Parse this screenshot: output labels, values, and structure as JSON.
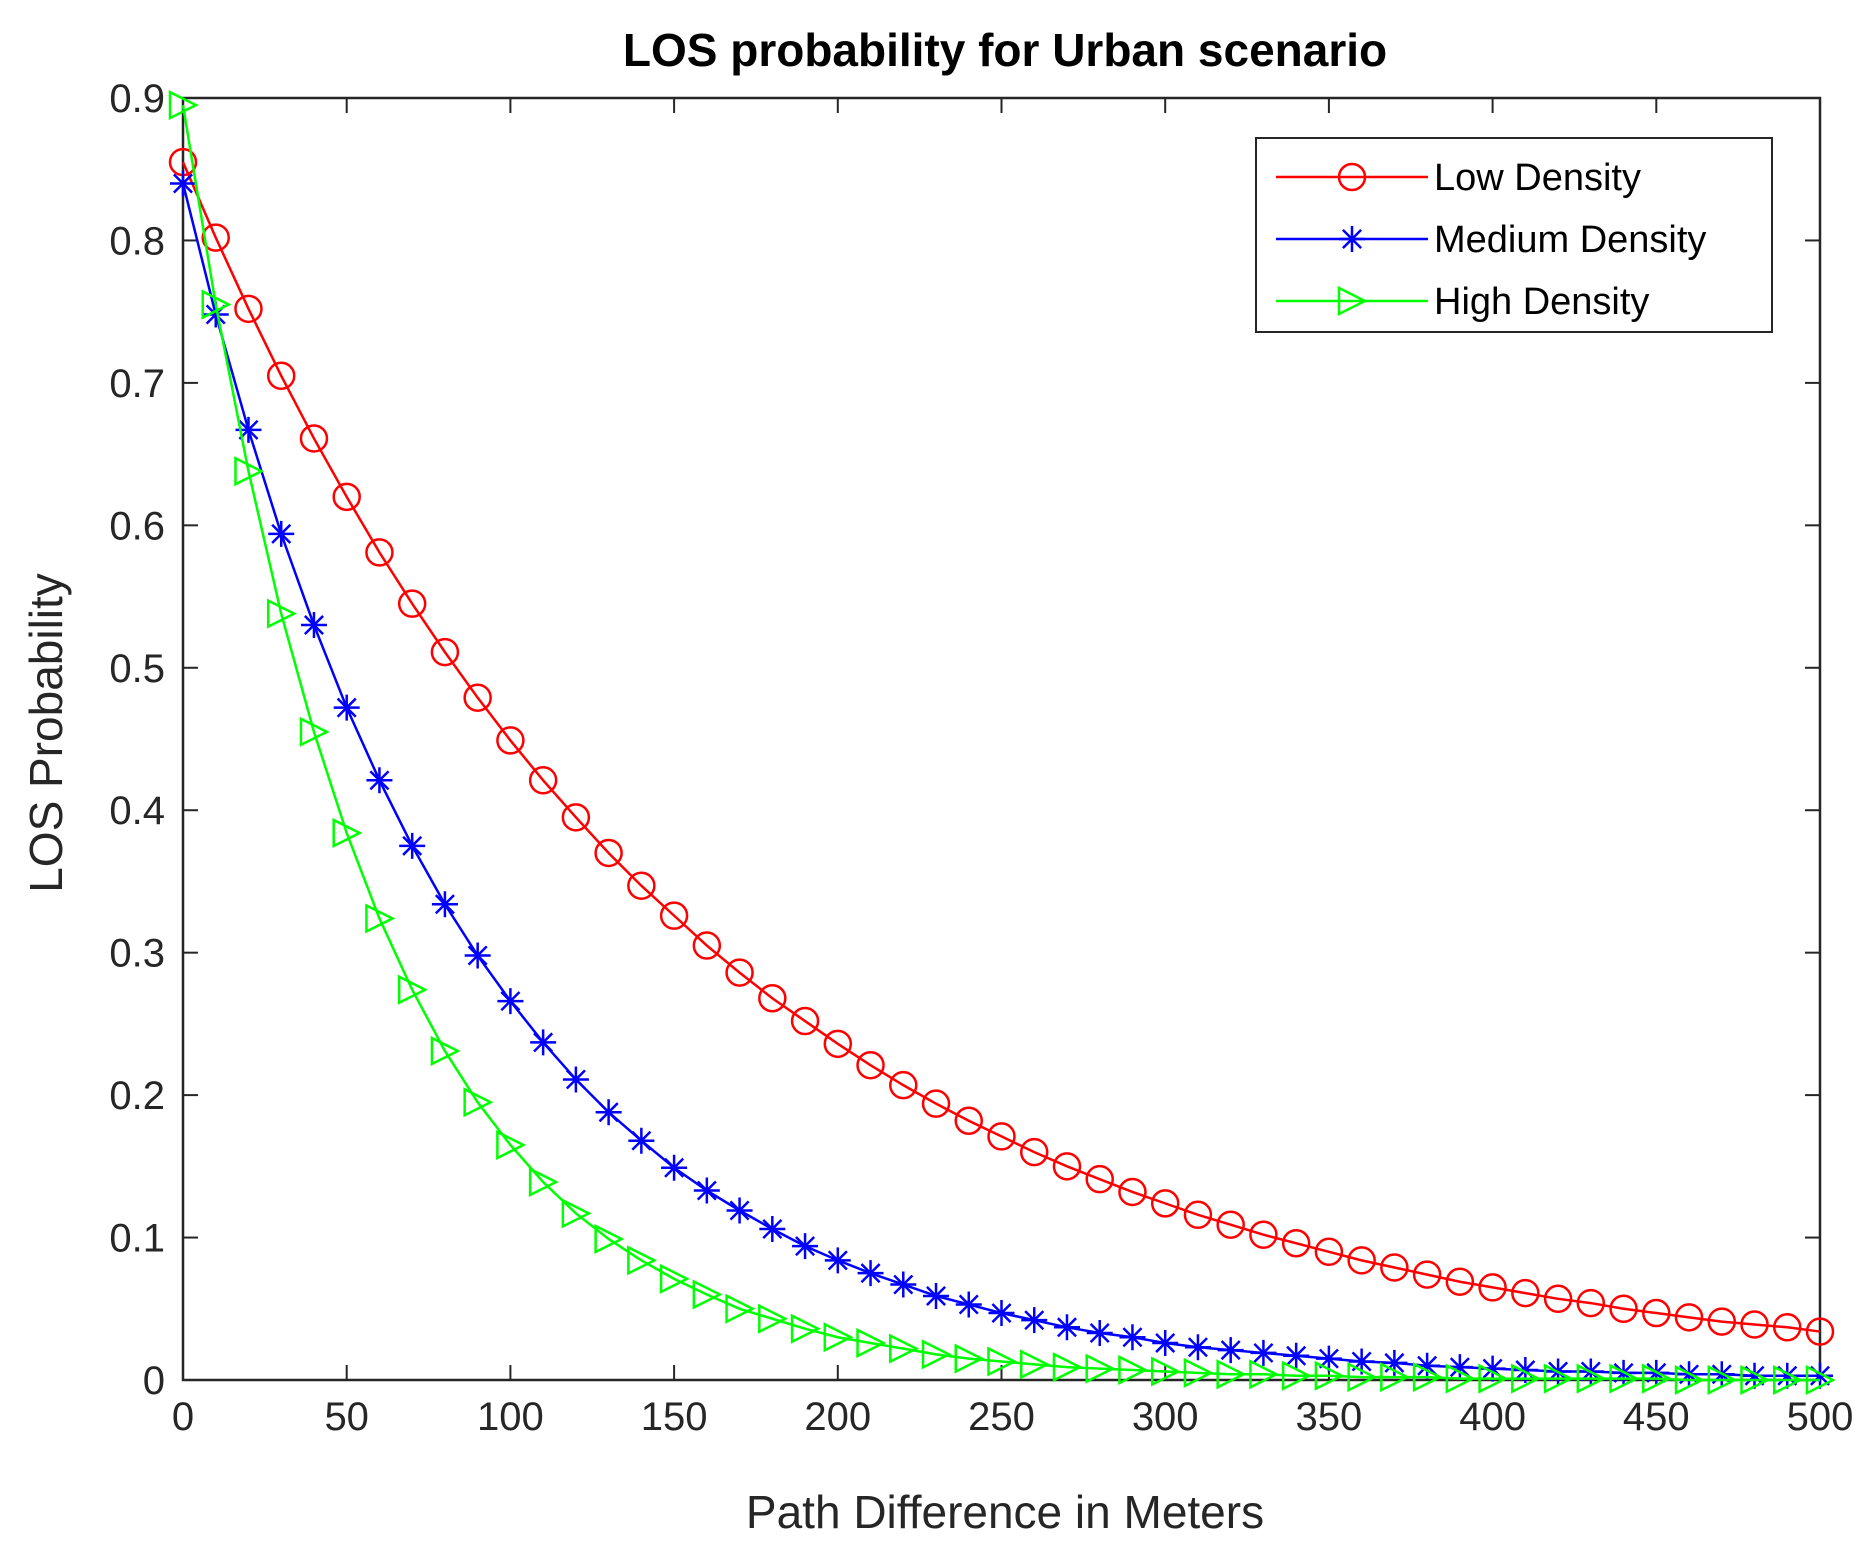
{
  "chart_data": {
    "type": "line",
    "title": "LOS probability for Urban scenario",
    "xlabel": "Path Difference in Meters",
    "ylabel": "LOS Probability",
    "xlim": [
      0,
      500
    ],
    "ylim": [
      0,
      0.9
    ],
    "xticks": [
      0,
      50,
      100,
      150,
      200,
      250,
      300,
      350,
      400,
      450,
      500
    ],
    "yticks": [
      0,
      0.1,
      0.2,
      0.3,
      0.4,
      0.5,
      0.6,
      0.7,
      0.8,
      0.9
    ],
    "xtick_labels": [
      "0",
      "50",
      "100",
      "150",
      "200",
      "250",
      "300",
      "350",
      "400",
      "450",
      "500"
    ],
    "ytick_labels": [
      "0",
      "0.1",
      "0.2",
      "0.3",
      "0.4",
      "0.5",
      "0.6",
      "0.7",
      "0.8",
      "0.9"
    ],
    "x": [
      0,
      10,
      20,
      30,
      40,
      50,
      60,
      70,
      80,
      90,
      100,
      110,
      120,
      130,
      140,
      150,
      160,
      170,
      180,
      190,
      200,
      210,
      220,
      230,
      240,
      250,
      260,
      270,
      280,
      290,
      300,
      310,
      320,
      330,
      340,
      350,
      360,
      370,
      380,
      390,
      400,
      410,
      420,
      430,
      440,
      450,
      460,
      470,
      480,
      490,
      500
    ],
    "legend_position": "top-right",
    "grid": false,
    "series": [
      {
        "name": "Low Density",
        "color": "#ff0000",
        "marker": "circle",
        "values": [
          0.855,
          0.802,
          0.752,
          0.705,
          0.661,
          0.62,
          0.581,
          0.545,
          0.511,
          0.479,
          0.449,
          0.421,
          0.395,
          0.37,
          0.347,
          0.326,
          0.305,
          0.286,
          0.268,
          0.252,
          0.236,
          0.221,
          0.207,
          0.194,
          0.182,
          0.171,
          0.16,
          0.15,
          0.141,
          0.132,
          0.124,
          0.116,
          0.109,
          0.102,
          0.096,
          0.09,
          0.084,
          0.079,
          0.074,
          0.069,
          0.065,
          0.061,
          0.057,
          0.054,
          0.05,
          0.047,
          0.044,
          0.041,
          0.039,
          0.037,
          0.034
        ]
      },
      {
        "name": "Medium Density",
        "color": "#0000ff",
        "marker": "star",
        "values": [
          0.84,
          0.748,
          0.667,
          0.594,
          0.53,
          0.472,
          0.421,
          0.375,
          0.334,
          0.298,
          0.266,
          0.237,
          0.211,
          0.188,
          0.168,
          0.149,
          0.133,
          0.119,
          0.106,
          0.094,
          0.084,
          0.075,
          0.067,
          0.059,
          0.053,
          0.047,
          0.042,
          0.037,
          0.033,
          0.03,
          0.026,
          0.023,
          0.021,
          0.019,
          0.017,
          0.015,
          0.013,
          0.012,
          0.01,
          0.009,
          0.008,
          0.007,
          0.006,
          0.006,
          0.005,
          0.005,
          0.004,
          0.004,
          0.003,
          0.003,
          0.003
        ]
      },
      {
        "name": "High Density",
        "color": "#00ff00",
        "marker": "triangle-right",
        "values": [
          0.895,
          0.755,
          0.638,
          0.538,
          0.455,
          0.384,
          0.324,
          0.274,
          0.231,
          0.195,
          0.165,
          0.139,
          0.117,
          0.099,
          0.084,
          0.071,
          0.06,
          0.05,
          0.043,
          0.036,
          0.03,
          0.026,
          0.022,
          0.018,
          0.015,
          0.013,
          0.011,
          0.009,
          0.008,
          0.007,
          0.006,
          0.005,
          0.004,
          0.004,
          0.003,
          0.003,
          0.002,
          0.002,
          0.002,
          0.001,
          0.001,
          0.001,
          0.001,
          0.001,
          0.001,
          0.001,
          0.0,
          0.0,
          0.0,
          0.0,
          0.0
        ]
      }
    ]
  }
}
